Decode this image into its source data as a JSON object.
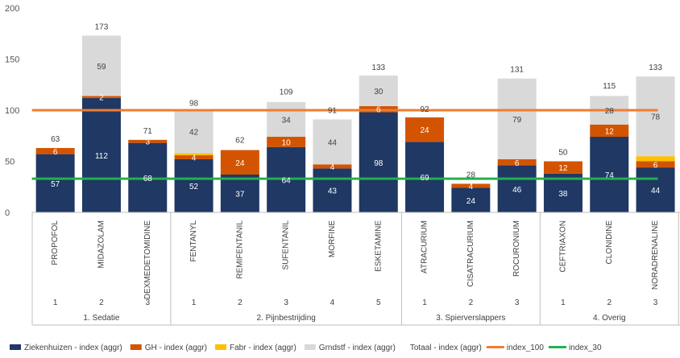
{
  "chart_data": {
    "type": "bar",
    "stacked": true,
    "ylim": [
      0,
      200
    ],
    "yticks": [
      0,
      50,
      100,
      150,
      200
    ],
    "grid": false,
    "legend": "bottom",
    "categories": [
      "PROPOFOL",
      "MIDAZOLAM",
      "DEXMEDETOMIDINE",
      "FENTANYL",
      "REMIFENTANIL",
      "SUFENTANIL",
      "MORFINE",
      "ESKETAMINE",
      "ATRACURIUM",
      "CISATRACURIUM",
      "ROCURONIUM",
      "CEFTRIAXON",
      "CLONIDINE",
      "NORADRENALINE"
    ],
    "subcategories": [
      "1",
      "2",
      "3",
      "1",
      "2",
      "3",
      "4",
      "5",
      "1",
      "2",
      "3",
      "1",
      "2",
      "3"
    ],
    "groups": [
      {
        "name": "1. Sedatie",
        "start": 0,
        "count": 3
      },
      {
        "name": "2. Pijnbestrijding",
        "start": 3,
        "count": 5
      },
      {
        "name": "3. Spierverslappers",
        "start": 8,
        "count": 3
      },
      {
        "name": "4. Overig",
        "start": 11,
        "count": 3
      }
    ],
    "series": [
      {
        "name": "Ziekenhuizen - index (aggr)",
        "color": "#1f3864",
        "values": [
          57,
          112,
          68,
          52,
          37,
          64,
          43,
          98,
          69,
          24,
          46,
          38,
          74,
          44
        ],
        "labels": [
          "57",
          "112",
          "68",
          "52",
          "37",
          "64",
          "43",
          "98",
          "69",
          "24",
          "46",
          "38",
          "74",
          "44"
        ]
      },
      {
        "name": "GH - index (aggr)",
        "color": "#d35400",
        "values": [
          6,
          2,
          3,
          4,
          24,
          10,
          4,
          6,
          24,
          4,
          6,
          12,
          12,
          6
        ],
        "labels": [
          "6",
          "2",
          "3",
          "4",
          "24",
          "10",
          "4",
          "6",
          "24",
          "4",
          "6",
          "12",
          "12",
          "6"
        ]
      },
      {
        "name": "Fabr - index (aggr)",
        "color": "#ffc000",
        "values": [
          0,
          0,
          0,
          2,
          0,
          0,
          0,
          0,
          0,
          0,
          0,
          0,
          0,
          5
        ],
        "labels": [
          "",
          "",
          "",
          "",
          "",
          "",
          "",
          "",
          "",
          "",
          "",
          "",
          "",
          ""
        ]
      },
      {
        "name": "Grndstf - index (aggr)",
        "color": "#d9d9d9",
        "values": [
          0,
          59,
          0,
          42,
          0,
          34,
          44,
          30,
          0,
          0,
          79,
          0,
          28,
          78
        ],
        "labels": [
          "",
          "59",
          "",
          "42",
          "",
          "34",
          "44",
          "30",
          "",
          "",
          "79",
          "",
          "28",
          "78"
        ]
      }
    ],
    "totals": {
      "name": "Totaal - index (aggr)",
      "values": [
        63,
        173,
        71,
        98,
        62,
        109,
        91,
        133,
        92,
        28,
        131,
        50,
        115,
        133
      ],
      "labels": [
        "63",
        "173",
        "71",
        "98",
        "62",
        "109",
        "91",
        "133",
        "92",
        "28",
        "131",
        "50",
        "115",
        "133"
      ]
    },
    "reference_lines": [
      {
        "name": "index_100",
        "value": 100,
        "color": "#ed7d31"
      },
      {
        "name": "index_30",
        "value": 33,
        "color": "#22b14c"
      }
    ]
  }
}
